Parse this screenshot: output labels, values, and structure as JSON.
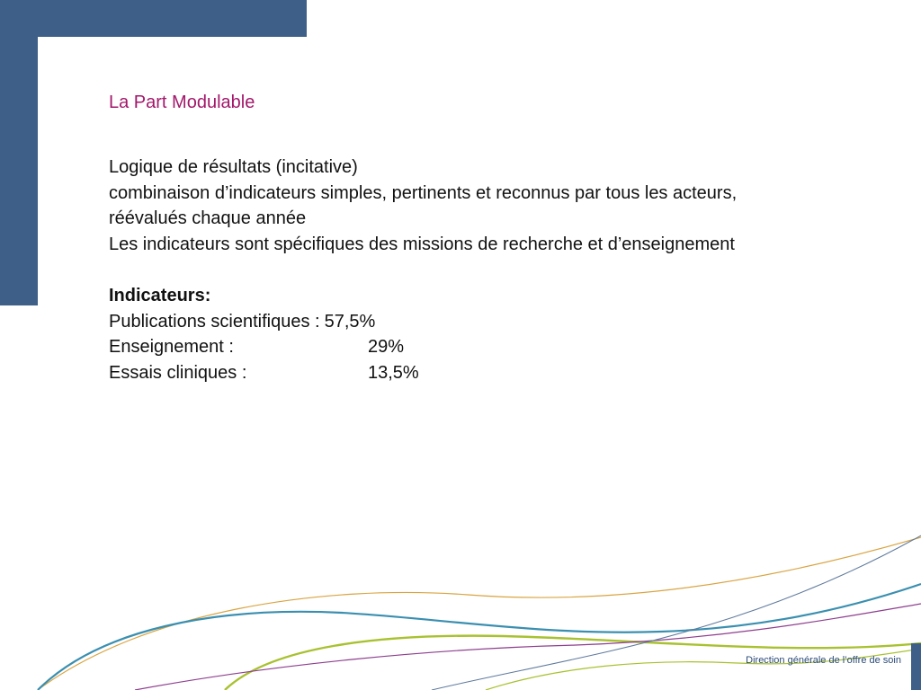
{
  "slide": {
    "title": "La Part Modulable",
    "lines": [
      "Logique de résultats (incitative)",
      "combinaison d’indicateurs simples, pertinents et reconnus par tous les acteurs,",
      "réévalués chaque année",
      "Les indicateurs sont spécifiques des missions de recherche et d’enseignement"
    ],
    "indicators_heading": "Indicateurs:",
    "indicators": [
      {
        "label": "Publications scientifiques :",
        "value": "57,5%"
      },
      {
        "label": "Enseignement :",
        "value": "29%"
      },
      {
        "label": "Essais cliniques :",
        "value": "13,5%"
      }
    ],
    "footer": "Direction générale de l’offre de soin"
  },
  "colors": {
    "blue_block": "#3e5f88",
    "title": "#a3186b",
    "curve_teal": "#3a8fb0",
    "curve_gold": "#d9a441",
    "curve_lime": "#a8c12f",
    "curve_purple": "#8e3f8e",
    "curve_slate": "#5f7a9e"
  }
}
